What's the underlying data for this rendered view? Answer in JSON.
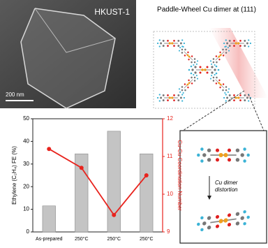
{
  "sem_image": {
    "label": "HKUST-1",
    "scale_bar": "200 nm"
  },
  "structure": {
    "title": "Paddle-Wheel Cu dimer at (111)",
    "inset_caption": [
      "Cu dimer",
      "distortion"
    ]
  },
  "chart_data": {
    "type": "bar",
    "categories": [
      "As-prepared",
      "250°C",
      "250°C",
      "250°C"
    ],
    "ylabel": "Ethylene (C₂H₄) FE (%)",
    "y2label": "Cu-Cu Coordination Number",
    "series": [
      {
        "color": "#c4c4c4",
        "values": [
          11.5,
          34.5,
          44.5,
          34.5
        ]
      },
      {
        "type": "line",
        "axis": "y2",
        "color": "#e8231d",
        "values": [
          11.2,
          10.7,
          9.45,
          10.5
        ]
      }
    ],
    "ylim": [
      0,
      50
    ],
    "yticks": [
      0,
      10,
      20,
      30,
      40,
      50
    ],
    "y2lim": [
      9,
      12
    ],
    "y2ticks": [
      9,
      10,
      11,
      12
    ]
  }
}
